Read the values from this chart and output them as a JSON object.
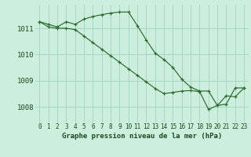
{
  "title": "Graphe pression niveau de la mer (hPa)",
  "x_ticks": [
    0,
    1,
    2,
    3,
    4,
    5,
    6,
    7,
    8,
    9,
    10,
    11,
    12,
    13,
    14,
    15,
    16,
    17,
    18,
    19,
    20,
    21,
    22,
    23
  ],
  "ylim": [
    1007.4,
    1011.9
  ],
  "yticks": [
    1008,
    1009,
    1010,
    1011
  ],
  "line1_x": [
    0,
    1,
    2,
    3,
    4,
    5,
    6,
    7,
    8,
    9,
    10,
    11,
    12,
    13,
    14,
    15,
    16,
    17,
    18,
    19,
    20,
    21,
    22,
    23
  ],
  "line1_y": [
    1011.25,
    1011.15,
    1011.05,
    1011.25,
    1011.15,
    1011.35,
    1011.45,
    1011.52,
    1011.58,
    1011.62,
    1011.62,
    1011.1,
    1010.55,
    1010.05,
    1009.8,
    1009.5,
    1009.05,
    1008.75,
    1008.6,
    1008.6,
    1008.05,
    1008.1,
    1008.72,
    1008.72
  ],
  "line2_x": [
    0,
    1,
    2,
    3,
    4,
    5,
    6,
    7,
    8,
    9,
    10,
    11,
    12,
    13,
    14,
    15,
    16,
    17,
    18,
    19,
    20,
    21,
    22,
    23
  ],
  "line2_y": [
    1011.25,
    1011.05,
    1011.0,
    1011.0,
    1010.95,
    1010.7,
    1010.45,
    1010.2,
    1009.95,
    1009.7,
    1009.45,
    1009.2,
    1008.95,
    1008.7,
    1008.5,
    1008.55,
    1008.6,
    1008.62,
    1008.58,
    1007.9,
    1008.05,
    1008.42,
    1008.38,
    1008.72
  ],
  "line_color": "#2d6a2d",
  "bg_color": "#cceedd",
  "grid_color": "#99ccbb",
  "text_color": "#1a4a1a",
  "tick_fontsize": 5.5,
  "ylabel_fontsize": 6.5,
  "title_fontsize": 6.5
}
